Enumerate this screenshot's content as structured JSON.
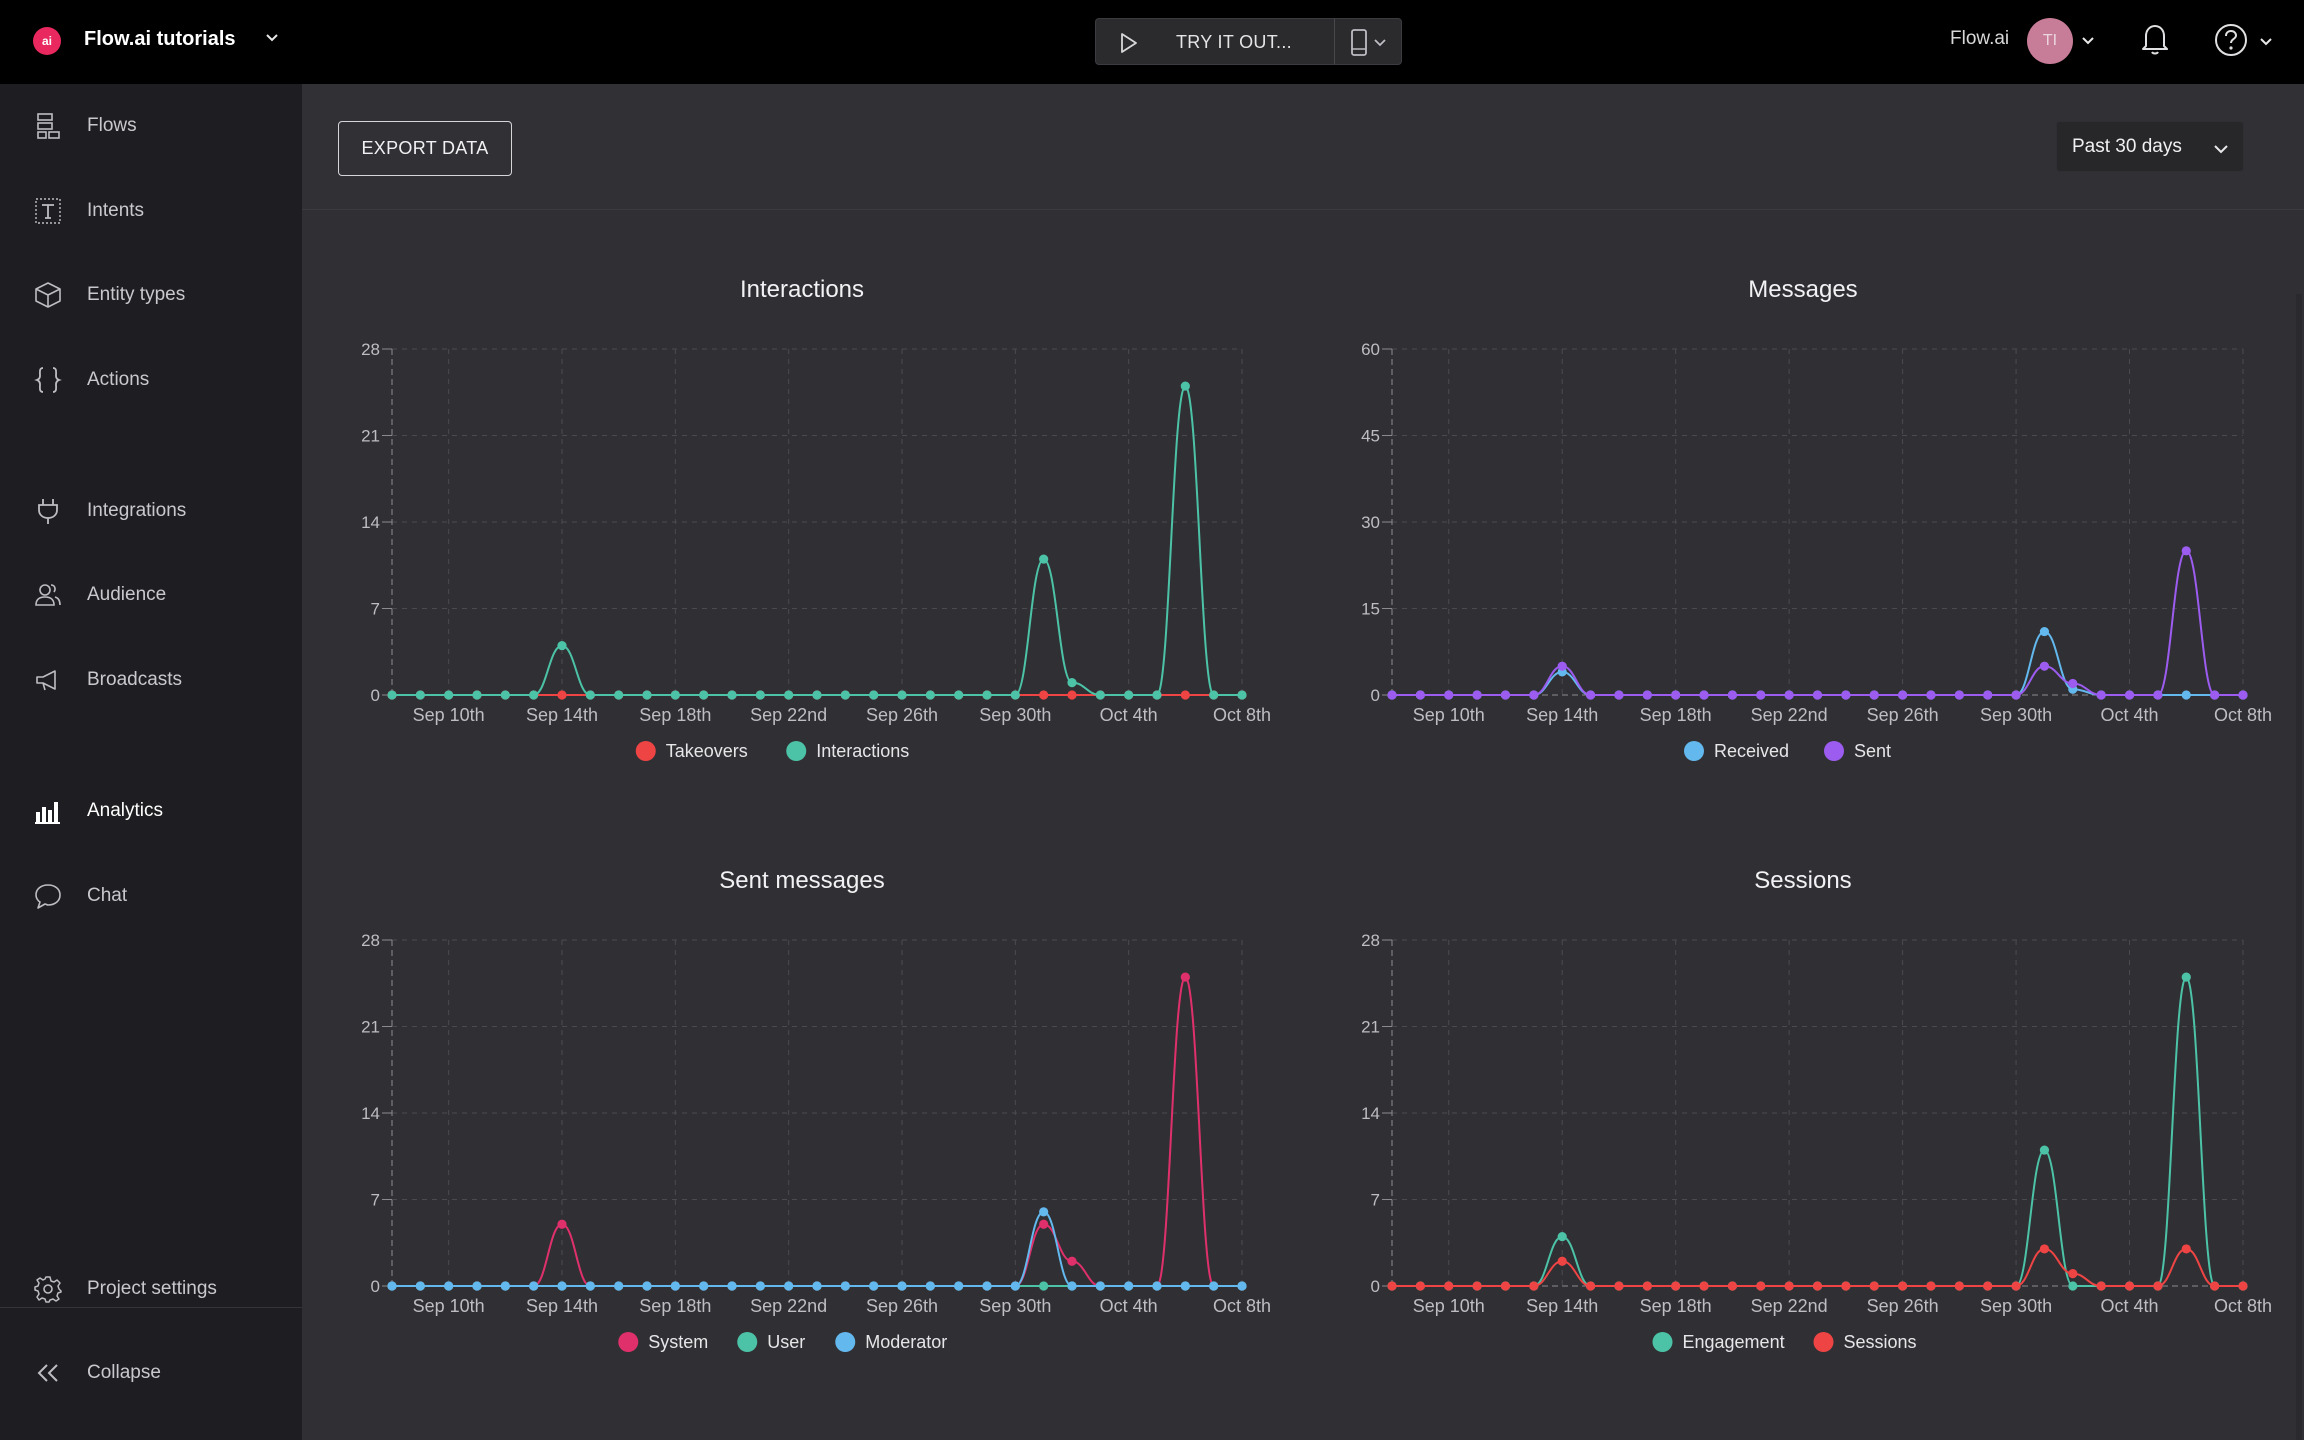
{
  "topbar": {
    "logo_text": "ai",
    "project_name": "Flow.ai tutorials",
    "try_label": "TRY IT OUT...",
    "user_name": "Flow.ai",
    "avatar_initials": "TI"
  },
  "sidebar": {
    "items": [
      {
        "label": "Flows",
        "icon": "flows-icon"
      },
      {
        "label": "Intents",
        "icon": "intents-icon"
      },
      {
        "label": "Entity types",
        "icon": "entity-types-icon"
      },
      {
        "label": "Actions",
        "icon": "actions-icon"
      },
      {
        "label": "Integrations",
        "icon": "plug-icon"
      },
      {
        "label": "Audience",
        "icon": "audience-icon"
      },
      {
        "label": "Broadcasts",
        "icon": "megaphone-icon"
      },
      {
        "label": "Analytics",
        "icon": "bar-chart-icon"
      },
      {
        "label": "Chat",
        "icon": "chat-bubble-icon"
      }
    ],
    "settings_label": "Project settings",
    "collapse_label": "Collapse"
  },
  "toolbar": {
    "export_label": "EXPORT DATA",
    "period_label": "Past 30 days"
  },
  "colors": {
    "red": "#ef4444",
    "teal": "#4cc2a7",
    "blue": "#63b8ee",
    "purple": "#9d5cf0",
    "pink": "#e0306c"
  },
  "chart_data": [
    {
      "type": "line",
      "title": "Interactions",
      "x": [
        "Sep 8th",
        "Sep 9th",
        "Sep 10th",
        "Sep 11th",
        "Sep 12th",
        "Sep 13th",
        "Sep 14th",
        "Sep 15th",
        "Sep 16th",
        "Sep 17th",
        "Sep 18th",
        "Sep 19th",
        "Sep 20th",
        "Sep 21st",
        "Sep 22nd",
        "Sep 23rd",
        "Sep 24th",
        "Sep 25th",
        "Sep 26th",
        "Sep 27th",
        "Sep 28th",
        "Sep 29th",
        "Sep 30th",
        "Oct 1st",
        "Oct 2nd",
        "Oct 3rd",
        "Oct 4th",
        "Oct 5th",
        "Oct 6th",
        "Oct 7th",
        "Oct 8th"
      ],
      "xticks": [
        "Sep 10th",
        "Sep 14th",
        "Sep 18th",
        "Sep 22nd",
        "Sep 26th",
        "Sep 30th",
        "Oct 4th",
        "Oct 8th"
      ],
      "yticks": [
        0,
        7,
        14,
        21,
        28
      ],
      "ylim": [
        0,
        28
      ],
      "grid": true,
      "legend": "bottom-center",
      "series": [
        {
          "name": "Takeovers",
          "color": "#ef4444",
          "values": [
            0,
            0,
            0,
            0,
            0,
            0,
            0,
            0,
            0,
            0,
            0,
            0,
            0,
            0,
            0,
            0,
            0,
            0,
            0,
            0,
            0,
            0,
            0,
            0,
            0,
            0,
            0,
            0,
            0,
            0,
            0
          ]
        },
        {
          "name": "Interactions",
          "color": "#4cc2a7",
          "values": [
            0,
            0,
            0,
            0,
            0,
            0,
            4,
            0,
            0,
            0,
            0,
            0,
            0,
            0,
            0,
            0,
            0,
            0,
            0,
            0,
            0,
            0,
            0,
            11,
            1,
            0,
            0,
            0,
            25,
            0,
            0
          ]
        }
      ]
    },
    {
      "type": "line",
      "title": "Messages",
      "x": [
        "Sep 8th",
        "Sep 9th",
        "Sep 10th",
        "Sep 11th",
        "Sep 12th",
        "Sep 13th",
        "Sep 14th",
        "Sep 15th",
        "Sep 16th",
        "Sep 17th",
        "Sep 18th",
        "Sep 19th",
        "Sep 20th",
        "Sep 21st",
        "Sep 22nd",
        "Sep 23rd",
        "Sep 24th",
        "Sep 25th",
        "Sep 26th",
        "Sep 27th",
        "Sep 28th",
        "Sep 29th",
        "Sep 30th",
        "Oct 1st",
        "Oct 2nd",
        "Oct 3rd",
        "Oct 4th",
        "Oct 5th",
        "Oct 6th",
        "Oct 7th",
        "Oct 8th"
      ],
      "xticks": [
        "Sep 10th",
        "Sep 14th",
        "Sep 18th",
        "Sep 22nd",
        "Sep 26th",
        "Sep 30th",
        "Oct 4th",
        "Oct 8th"
      ],
      "yticks": [
        0,
        15,
        30,
        45,
        60
      ],
      "ylim": [
        0,
        60
      ],
      "grid": true,
      "legend": "bottom-center",
      "series": [
        {
          "name": "Received",
          "color": "#63b8ee",
          "values": [
            0,
            0,
            0,
            0,
            0,
            0,
            4,
            0,
            0,
            0,
            0,
            0,
            0,
            0,
            0,
            0,
            0,
            0,
            0,
            0,
            0,
            0,
            0,
            11,
            1,
            0,
            0,
            0,
            0,
            0,
            0
          ]
        },
        {
          "name": "Sent",
          "color": "#9d5cf0",
          "values": [
            0,
            0,
            0,
            0,
            0,
            0,
            5,
            0,
            0,
            0,
            0,
            0,
            0,
            0,
            0,
            0,
            0,
            0,
            0,
            0,
            0,
            0,
            0,
            5,
            2,
            0,
            0,
            0,
            25,
            0,
            0
          ]
        }
      ]
    },
    {
      "type": "line",
      "title": "Sent messages",
      "x": [
        "Sep 8th",
        "Sep 9th",
        "Sep 10th",
        "Sep 11th",
        "Sep 12th",
        "Sep 13th",
        "Sep 14th",
        "Sep 15th",
        "Sep 16th",
        "Sep 17th",
        "Sep 18th",
        "Sep 19th",
        "Sep 20th",
        "Sep 21st",
        "Sep 22nd",
        "Sep 23rd",
        "Sep 24th",
        "Sep 25th",
        "Sep 26th",
        "Sep 27th",
        "Sep 28th",
        "Sep 29th",
        "Sep 30th",
        "Oct 1st",
        "Oct 2nd",
        "Oct 3rd",
        "Oct 4th",
        "Oct 5th",
        "Oct 6th",
        "Oct 7th",
        "Oct 8th"
      ],
      "xticks": [
        "Sep 10th",
        "Sep 14th",
        "Sep 18th",
        "Sep 22nd",
        "Sep 26th",
        "Sep 30th",
        "Oct 4th",
        "Oct 8th"
      ],
      "yticks": [
        0,
        7,
        14,
        21,
        28
      ],
      "ylim": [
        0,
        28
      ],
      "grid": true,
      "legend": "bottom-center",
      "series": [
        {
          "name": "System",
          "color": "#e0306c",
          "values": [
            0,
            0,
            0,
            0,
            0,
            0,
            5,
            0,
            0,
            0,
            0,
            0,
            0,
            0,
            0,
            0,
            0,
            0,
            0,
            0,
            0,
            0,
            0,
            5,
            2,
            0,
            0,
            0,
            25,
            0,
            0
          ]
        },
        {
          "name": "User",
          "color": "#4cc2a7",
          "values": [
            0,
            0,
            0,
            0,
            0,
            0,
            0,
            0,
            0,
            0,
            0,
            0,
            0,
            0,
            0,
            0,
            0,
            0,
            0,
            0,
            0,
            0,
            0,
            0,
            0,
            0,
            0,
            0,
            0,
            0,
            0
          ]
        },
        {
          "name": "Moderator",
          "color": "#63b8ee",
          "values": [
            0,
            0,
            0,
            0,
            0,
            0,
            0,
            0,
            0,
            0,
            0,
            0,
            0,
            0,
            0,
            0,
            0,
            0,
            0,
            0,
            0,
            0,
            0,
            6,
            0,
            0,
            0,
            0,
            0,
            0,
            0
          ]
        }
      ]
    },
    {
      "type": "line",
      "title": "Sessions",
      "x": [
        "Sep 8th",
        "Sep 9th",
        "Sep 10th",
        "Sep 11th",
        "Sep 12th",
        "Sep 13th",
        "Sep 14th",
        "Sep 15th",
        "Sep 16th",
        "Sep 17th",
        "Sep 18th",
        "Sep 19th",
        "Sep 20th",
        "Sep 21st",
        "Sep 22nd",
        "Sep 23rd",
        "Sep 24th",
        "Sep 25th",
        "Sep 26th",
        "Sep 27th",
        "Sep 28th",
        "Sep 29th",
        "Sep 30th",
        "Oct 1st",
        "Oct 2nd",
        "Oct 3rd",
        "Oct 4th",
        "Oct 5th",
        "Oct 6th",
        "Oct 7th",
        "Oct 8th"
      ],
      "xticks": [
        "Sep 10th",
        "Sep 14th",
        "Sep 18th",
        "Sep 22nd",
        "Sep 26th",
        "Sep 30th",
        "Oct 4th",
        "Oct 8th"
      ],
      "yticks": [
        0,
        7,
        14,
        21,
        28
      ],
      "ylim": [
        0,
        28
      ],
      "grid": true,
      "legend": "bottom-center",
      "series": [
        {
          "name": "Engagement",
          "color": "#4cc2a7",
          "values": [
            0,
            0,
            0,
            0,
            0,
            0,
            4,
            0,
            0,
            0,
            0,
            0,
            0,
            0,
            0,
            0,
            0,
            0,
            0,
            0,
            0,
            0,
            0,
            11,
            0,
            0,
            0,
            0,
            25,
            0,
            0
          ]
        },
        {
          "name": "Sessions",
          "color": "#ef4444",
          "values": [
            0,
            0,
            0,
            0,
            0,
            0,
            2,
            0,
            0,
            0,
            0,
            0,
            0,
            0,
            0,
            0,
            0,
            0,
            0,
            0,
            0,
            0,
            0,
            3,
            1,
            0,
            0,
            0,
            3,
            0,
            0
          ]
        }
      ]
    }
  ]
}
